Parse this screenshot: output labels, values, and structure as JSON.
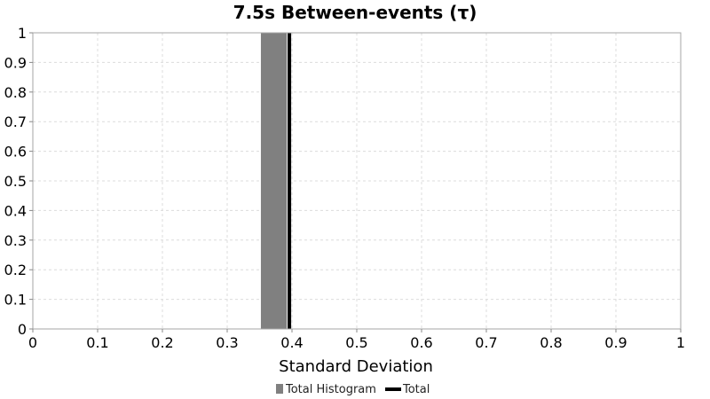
{
  "chart_data": {
    "type": "bar",
    "title": "7.5s Between-events (τ)",
    "xlabel": "Standard Deviation",
    "ylabel": "",
    "xlim": [
      0,
      1
    ],
    "ylim": [
      0,
      1
    ],
    "grid": true,
    "x_ticks": [
      "0",
      "0.1",
      "0.2",
      "0.3",
      "0.4",
      "0.5",
      "0.6",
      "0.7",
      "0.8",
      "0.9",
      "1"
    ],
    "y_ticks": [
      "0",
      "0.1",
      "0.2",
      "0.3",
      "0.4",
      "0.5",
      "0.6",
      "0.7",
      "0.8",
      "0.9",
      "1"
    ],
    "series": [
      {
        "name": "Total Histogram",
        "kind": "histogram",
        "color": "#808080",
        "bins": [
          {
            "x_start": 0.352,
            "x_end": 0.392,
            "value": 1
          }
        ]
      },
      {
        "name": "Total",
        "kind": "vertical-line",
        "color": "#000000",
        "x": 0.396
      }
    ],
    "legend": {
      "position": "bottom-center",
      "entries": [
        "Total Histogram",
        "Total"
      ]
    }
  }
}
